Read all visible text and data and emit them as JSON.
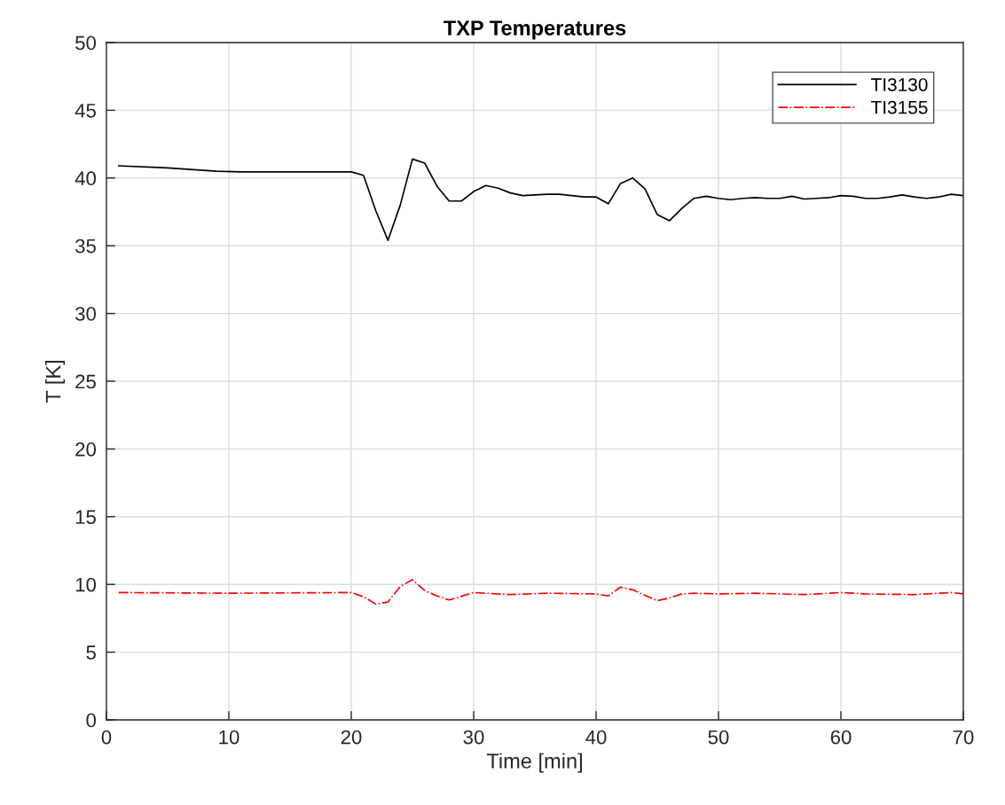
{
  "chart_data": {
    "type": "line",
    "title": "TXP Temperatures",
    "xlabel": "Time [min]",
    "ylabel": "T [K]",
    "xlim": [
      0,
      70
    ],
    "xticks": [
      0,
      10,
      20,
      30,
      40,
      50,
      60,
      70
    ],
    "ylim": [
      0,
      50
    ],
    "yticks": [
      0,
      5,
      10,
      15,
      20,
      25,
      30,
      35,
      40,
      45,
      50
    ],
    "grid": true,
    "legend": "top right",
    "marker": "none",
    "series": [
      {
        "name": "TI3130",
        "color": "#000000",
        "line_style": "solid",
        "x": [
          1,
          5,
          9,
          11,
          15,
          18,
          20,
          21,
          22,
          23,
          24,
          25,
          26,
          27,
          28,
          29,
          30,
          31,
          32,
          33,
          34,
          35,
          36,
          37,
          38,
          39,
          40,
          41,
          42,
          43,
          44,
          45,
          46,
          47,
          48,
          49,
          50,
          51,
          52,
          53,
          54,
          55,
          56,
          57,
          58,
          59,
          60,
          61,
          62,
          63,
          64,
          65,
          66,
          67,
          68,
          69,
          70
        ],
        "values": [
          40.9,
          40.75,
          40.5,
          40.45,
          40.45,
          40.45,
          40.45,
          40.2,
          37.6,
          35.4,
          38.0,
          41.4,
          41.1,
          39.4,
          38.3,
          38.3,
          39.0,
          39.45,
          39.25,
          38.9,
          38.7,
          38.75,
          38.8,
          38.8,
          38.7,
          38.6,
          38.6,
          38.1,
          39.6,
          40.0,
          39.2,
          37.3,
          36.85,
          37.75,
          38.5,
          38.65,
          38.5,
          38.4,
          38.5,
          38.55,
          38.5,
          38.5,
          38.65,
          38.45,
          38.5,
          38.55,
          38.7,
          38.65,
          38.5,
          38.5,
          38.6,
          38.75,
          38.6,
          38.5,
          38.6,
          38.8,
          38.7
        ]
      },
      {
        "name": "TI3155",
        "color": "#ff0000",
        "line_style": "dashdot",
        "x": [
          1,
          10,
          20,
          21,
          22,
          23,
          24,
          25,
          26,
          27,
          28,
          30,
          33,
          36,
          40,
          41,
          42,
          43,
          44,
          45,
          46,
          47,
          48,
          50,
          53,
          57,
          60,
          62,
          66,
          69,
          70
        ],
        "values": [
          9.4,
          9.35,
          9.4,
          9.1,
          8.55,
          8.7,
          9.85,
          10.35,
          9.55,
          9.15,
          8.85,
          9.4,
          9.25,
          9.35,
          9.3,
          9.15,
          9.8,
          9.6,
          9.2,
          8.8,
          9.0,
          9.3,
          9.35,
          9.3,
          9.35,
          9.25,
          9.4,
          9.3,
          9.25,
          9.4,
          9.3
        ]
      }
    ]
  }
}
